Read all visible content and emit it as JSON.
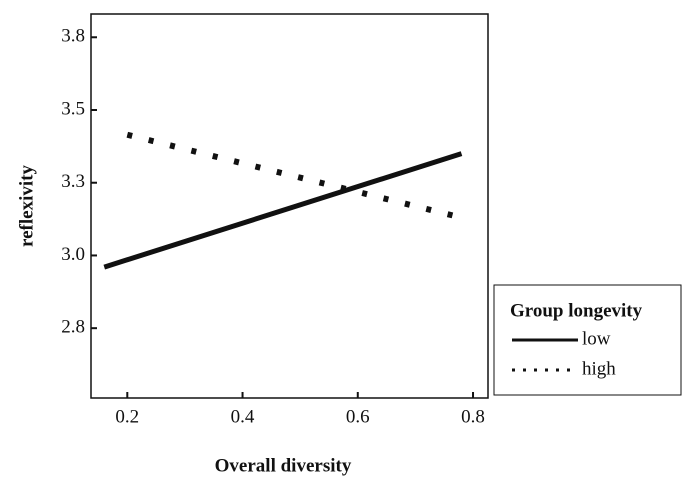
{
  "chart_data": {
    "type": "line",
    "x_label": "Overall diversity",
    "y_label": "reflexivity",
    "x": [
      0.16,
      0.78
    ],
    "series": [
      {
        "name": "low",
        "color": "#111111",
        "style": "solid",
        "values": [
          2.96,
          3.35
        ]
      },
      {
        "name": "high",
        "color": "#111111",
        "style": "dotted",
        "x": [
          0.2,
          0.78
        ],
        "values": [
          3.415,
          3.13
        ]
      }
    ],
    "xlim": [
      0.137,
      0.826
    ],
    "xticks": [
      0.2,
      0.4,
      0.6,
      0.8
    ],
    "ylim": [
      2.51,
      3.83
    ],
    "yticks": [
      {
        "value": 2.75,
        "label": "2.8"
      },
      {
        "value": 3.0,
        "label": "3.0"
      },
      {
        "value": 3.25,
        "label": "3.3"
      },
      {
        "value": 3.5,
        "label": "3.5"
      },
      {
        "value": 3.75,
        "label": "3.8"
      }
    ],
    "legend_title": "Group longevity",
    "legend": "right"
  }
}
